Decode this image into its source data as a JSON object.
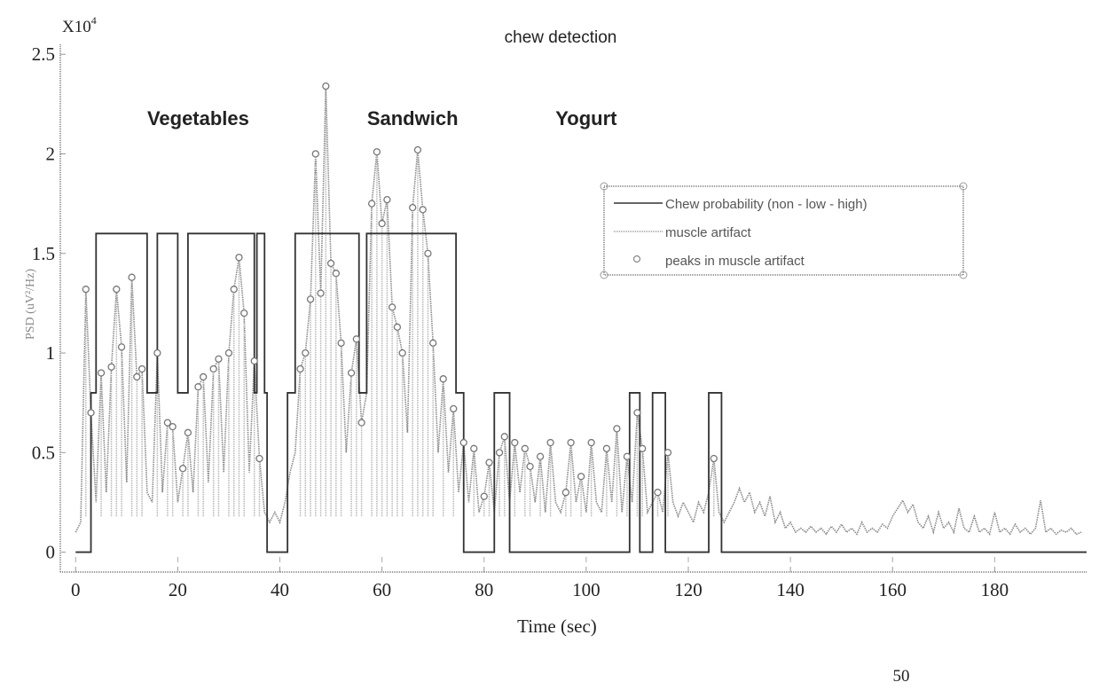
{
  "chart_data": {
    "type": "line",
    "title": "chew detection",
    "xlabel": "Time (sec)",
    "ylabel": "PSD (uV²/Hz)",
    "y_multiplier": "X10",
    "y_multiplier_exp": "4",
    "xlim": [
      -3,
      198
    ],
    "ylim": [
      -0.1,
      2.55
    ],
    "xticks": [
      0,
      20,
      40,
      60,
      80,
      100,
      120,
      140,
      160,
      180
    ],
    "yticks": [
      0,
      0.5,
      1,
      1.5,
      2,
      2.5
    ],
    "ytick_labels": [
      "0",
      "0.5",
      "1",
      "1.5",
      "2",
      "2.5"
    ],
    "xtick_labels": [
      "0",
      "20",
      "40",
      "60",
      "80",
      "100",
      "120",
      "140",
      "160",
      "180"
    ],
    "annotations": [
      {
        "text": "Vegetables",
        "x": 24,
        "y": 2.18
      },
      {
        "text": "Sandwich",
        "x": 66,
        "y": 2.18
      },
      {
        "text": "Yogurt",
        "x": 100,
        "y": 2.18
      }
    ],
    "legend": {
      "placement": "upper-right",
      "entries": [
        "Chew probability (non - low - high)",
        "muscle artifact",
        "peaks in muscle artifact"
      ]
    },
    "series": [
      {
        "name": "Chew probability (non - low - high)",
        "style": "step",
        "color": "#333333",
        "segments": [
          [
            0,
            0
          ],
          [
            3,
            0.8
          ],
          [
            4,
            1.6
          ],
          [
            14,
            0.8
          ],
          [
            16,
            1.6
          ],
          [
            20,
            0.8
          ],
          [
            22,
            1.6
          ],
          [
            35,
            0.8
          ],
          [
            35.5,
            1.6
          ],
          [
            37,
            0.8
          ],
          [
            37.5,
            0
          ],
          [
            41.5,
            0.8
          ],
          [
            43,
            1.6
          ],
          [
            55.5,
            0.8
          ],
          [
            57,
            1.6
          ],
          [
            74.5,
            0.8
          ],
          [
            76,
            0
          ],
          [
            82,
            0.8
          ],
          [
            85,
            0
          ],
          [
            108.5,
            0.8
          ],
          [
            110.5,
            0
          ],
          [
            113,
            0.8
          ],
          [
            115.5,
            0
          ],
          [
            124,
            0.8
          ],
          [
            126.5,
            0
          ],
          [
            198,
            0
          ]
        ]
      },
      {
        "name": "muscle artifact",
        "style": "line",
        "color": "#8a8a8a",
        "t0": 0,
        "dt": 1,
        "values": [
          0.1,
          0.15,
          1.32,
          0.7,
          0.25,
          0.9,
          0.3,
          0.93,
          1.32,
          1.03,
          0.35,
          1.38,
          0.88,
          0.92,
          0.3,
          0.25,
          1.0,
          0.3,
          0.65,
          0.63,
          0.25,
          0.42,
          0.6,
          0.3,
          0.83,
          0.88,
          0.35,
          0.92,
          0.97,
          0.4,
          1.0,
          1.32,
          1.48,
          1.2,
          0.4,
          0.96,
          0.47,
          0.2,
          0.15,
          0.2,
          0.15,
          0.25,
          0.4,
          0.5,
          0.92,
          1.0,
          1.27,
          2.0,
          1.3,
          2.34,
          1.45,
          1.4,
          1.05,
          0.5,
          0.9,
          1.07,
          0.65,
          0.8,
          1.75,
          2.01,
          1.65,
          1.77,
          1.23,
          1.13,
          1.0,
          0.6,
          1.73,
          2.02,
          1.72,
          1.5,
          1.05,
          0.5,
          0.87,
          0.4,
          0.72,
          0.3,
          0.55,
          0.25,
          0.52,
          0.2,
          0.28,
          0.45,
          0.2,
          0.5,
          0.58,
          0.25,
          0.55,
          0.3,
          0.52,
          0.43,
          0.25,
          0.48,
          0.2,
          0.55,
          0.25,
          0.2,
          0.3,
          0.55,
          0.25,
          0.38,
          0.2,
          0.55,
          0.25,
          0.2,
          0.52,
          0.25,
          0.62,
          0.2,
          0.48,
          0.25,
          0.7,
          0.52,
          0.2,
          0.25,
          0.3,
          0.2,
          0.5,
          0.25,
          0.18,
          0.25,
          0.2,
          0.15,
          0.25,
          0.2,
          0.3,
          0.47,
          0.2,
          0.15,
          0.2,
          0.25,
          0.32,
          0.25,
          0.3,
          0.2,
          0.25,
          0.18,
          0.28,
          0.15,
          0.2,
          0.12,
          0.15,
          0.1,
          0.12,
          0.1,
          0.13,
          0.1,
          0.12,
          0.09,
          0.13,
          0.1,
          0.14,
          0.1,
          0.12,
          0.09,
          0.15,
          0.1,
          0.12,
          0.1,
          0.14,
          0.12,
          0.18,
          0.22,
          0.26,
          0.2,
          0.24,
          0.15,
          0.12,
          0.18,
          0.1,
          0.2,
          0.12,
          0.15,
          0.1,
          0.22,
          0.12,
          0.1,
          0.18,
          0.1,
          0.12,
          0.09,
          0.2,
          0.1,
          0.12,
          0.09,
          0.14,
          0.1,
          0.12,
          0.09,
          0.12,
          0.26,
          0.1,
          0.12,
          0.09,
          0.11,
          0.1,
          0.12,
          0.09,
          0.1
        ]
      },
      {
        "name": "peaks in muscle artifact",
        "style": "markers",
        "color": "#777777",
        "points": [
          [
            2,
            1.32
          ],
          [
            3,
            0.7
          ],
          [
            5,
            0.9
          ],
          [
            7,
            0.93
          ],
          [
            8,
            1.32
          ],
          [
            9,
            1.03
          ],
          [
            11,
            1.38
          ],
          [
            12,
            0.88
          ],
          [
            13,
            0.92
          ],
          [
            16,
            1.0
          ],
          [
            18,
            0.65
          ],
          [
            19,
            0.63
          ],
          [
            21,
            0.42
          ],
          [
            22,
            0.6
          ],
          [
            24,
            0.83
          ],
          [
            25,
            0.88
          ],
          [
            27,
            0.92
          ],
          [
            28,
            0.97
          ],
          [
            30,
            1.0
          ],
          [
            31,
            1.32
          ],
          [
            32,
            1.48
          ],
          [
            33,
            1.2
          ],
          [
            35,
            0.96
          ],
          [
            36,
            0.47
          ],
          [
            44,
            0.92
          ],
          [
            45,
            1.0
          ],
          [
            46,
            1.27
          ],
          [
            47,
            2.0
          ],
          [
            48,
            1.3
          ],
          [
            49,
            2.34
          ],
          [
            50,
            1.45
          ],
          [
            51,
            1.4
          ],
          [
            52,
            1.05
          ],
          [
            54,
            0.9
          ],
          [
            55,
            1.07
          ],
          [
            56,
            0.65
          ],
          [
            58,
            1.75
          ],
          [
            59,
            2.01
          ],
          [
            60,
            1.65
          ],
          [
            61,
            1.77
          ],
          [
            62,
            1.23
          ],
          [
            63,
            1.13
          ],
          [
            64,
            1.0
          ],
          [
            66,
            1.73
          ],
          [
            67,
            2.02
          ],
          [
            68,
            1.72
          ],
          [
            69,
            1.5
          ],
          [
            70,
            1.05
          ],
          [
            72,
            0.87
          ],
          [
            74,
            0.72
          ],
          [
            76,
            0.55
          ],
          [
            78,
            0.52
          ],
          [
            80,
            0.28
          ],
          [
            81,
            0.45
          ],
          [
            83,
            0.5
          ],
          [
            84,
            0.58
          ],
          [
            86,
            0.55
          ],
          [
            88,
            0.52
          ],
          [
            89,
            0.43
          ],
          [
            91,
            0.48
          ],
          [
            93,
            0.55
          ],
          [
            96,
            0.3
          ],
          [
            97,
            0.55
          ],
          [
            99,
            0.38
          ],
          [
            101,
            0.55
          ],
          [
            104,
            0.52
          ],
          [
            106,
            0.62
          ],
          [
            108,
            0.48
          ],
          [
            110,
            0.7
          ],
          [
            111,
            0.52
          ],
          [
            114,
            0.3
          ],
          [
            116,
            0.5
          ],
          [
            125,
            0.47
          ]
        ]
      }
    ],
    "page_number": "50"
  }
}
